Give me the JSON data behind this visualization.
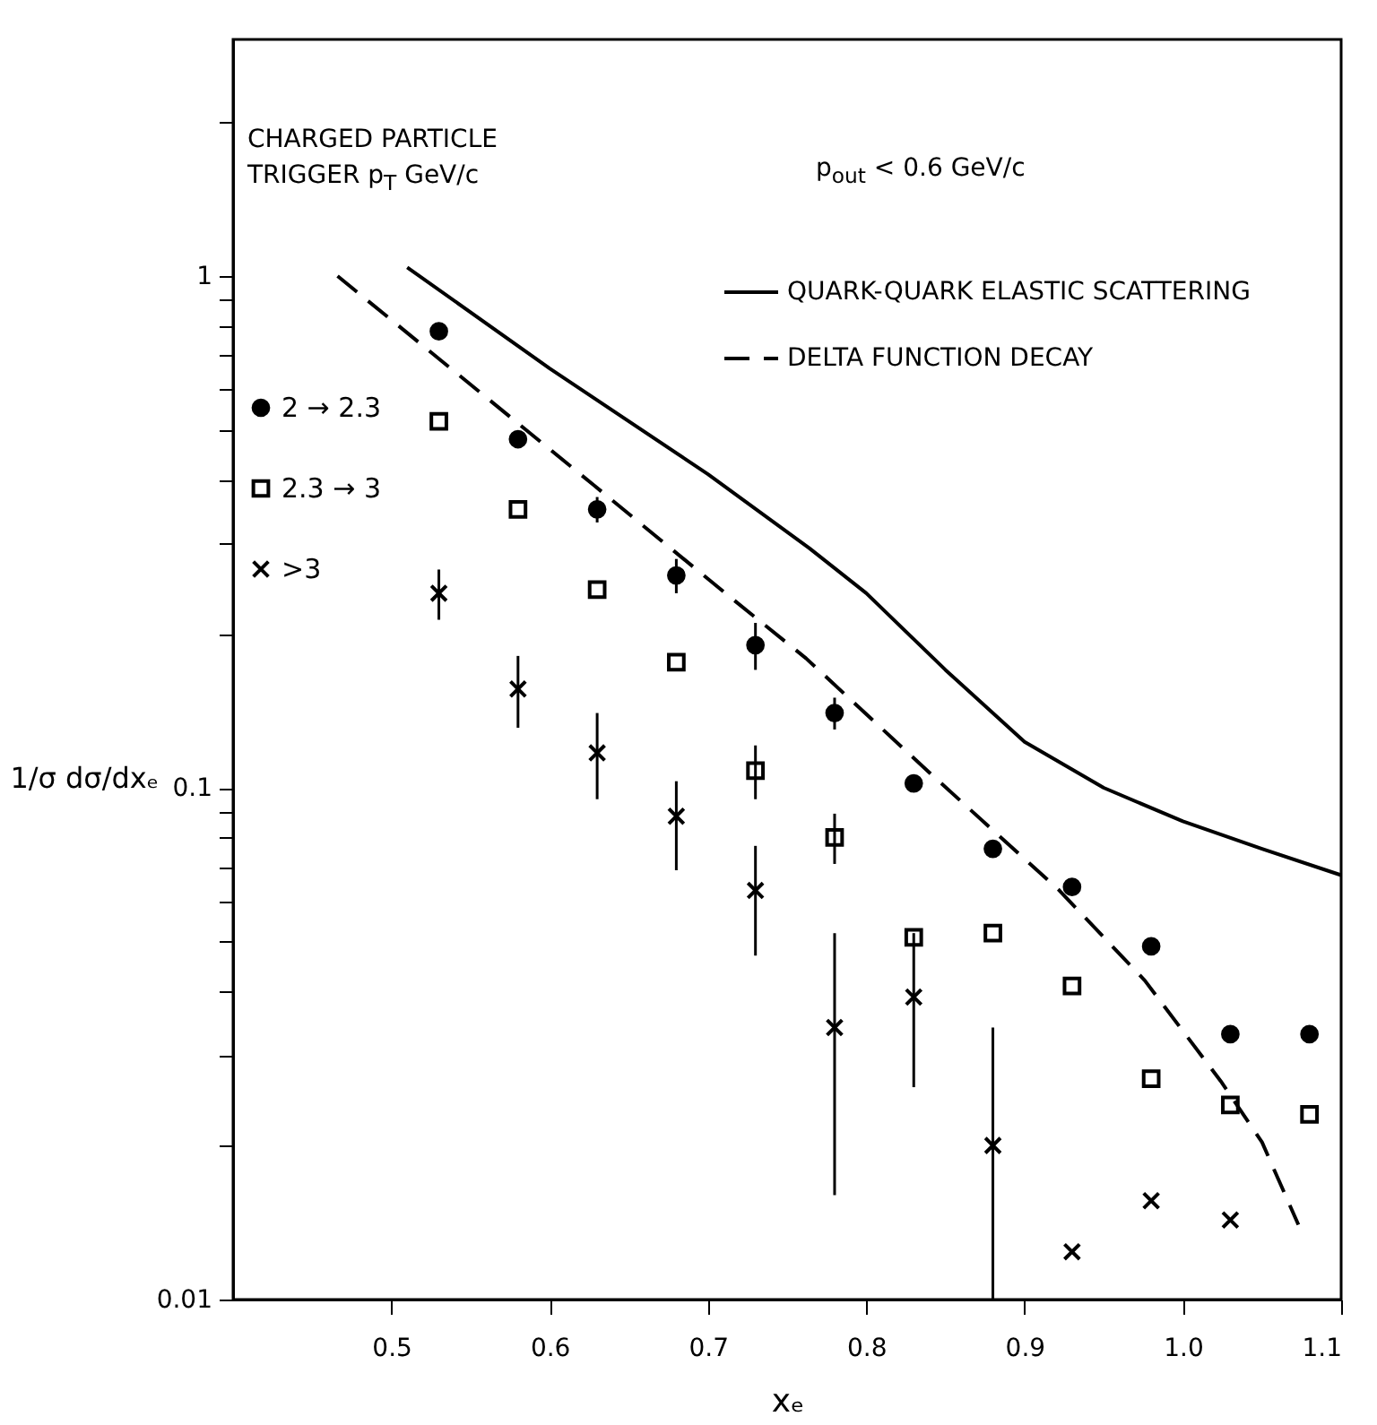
{
  "chart_data": {
    "type": "scatter",
    "xlabel": "xₑ",
    "ylabel": "1/σ dσ/dxₑ",
    "annotations": [
      "CHARGED PARTICLE TRIGGER p$_{T}$ GeV/c",
      "p$_{out}$ < 0.6 GeV/c"
    ],
    "x": [
      0.53,
      0.58,
      0.63,
      0.68,
      0.73,
      0.78,
      0.83,
      0.88,
      0.93,
      0.98,
      1.03,
      1.08
    ],
    "series": [
      {
        "name": "QUARK-QUARK ELASTIC SCATTERING",
        "type": "line",
        "line_style": "solid",
        "color": "#000000",
        "x": [
          0.51,
          0.6,
          0.7,
          0.764,
          0.8,
          0.85,
          0.9,
          0.95,
          1.0,
          1.05,
          1.1
        ],
        "values": [
          1.04,
          0.66,
          0.41,
          0.294,
          0.24,
          0.17,
          0.123,
          0.1,
          0.086,
          0.076,
          0.0675
        ]
      },
      {
        "name": "DELTA FUNCTION DECAY",
        "type": "line",
        "line_style": "dashed",
        "color": "#000000",
        "x": [
          0.466,
          0.628,
          0.711,
          0.762,
          0.84,
          0.922,
          0.976,
          1.024,
          1.05,
          1.073
        ],
        "values": [
          1.0,
          0.39,
          0.24,
          0.179,
          0.107,
          0.063,
          0.042,
          0.0267,
          0.0203,
          0.014
        ]
      },
      {
        "name": "2 → 2.3",
        "marker": "circle",
        "color": "#000000",
        "values": [
          0.78,
          0.48,
          0.35,
          0.26,
          0.19,
          0.14,
          0.102,
          0.076,
          0.064,
          0.049,
          0.033,
          0.033
        ],
        "errors": [
          null,
          null,
          [
            0.33,
            0.37
          ],
          [
            0.24,
            0.28
          ],
          [
            0.17,
            0.21
          ],
          [
            0.13,
            0.15
          ],
          null,
          null,
          null,
          null,
          null,
          null
        ]
      },
      {
        "name": "2.3 → 3",
        "marker": "square",
        "color": "#000000",
        "values": [
          0.52,
          0.35,
          0.244,
          0.176,
          0.108,
          0.08,
          0.051,
          0.052,
          0.041,
          0.027,
          0.024,
          0.023
        ],
        "errors": [
          null,
          null,
          null,
          null,
          [
            0.095,
            0.121
          ],
          [
            0.071,
            0.089
          ],
          null,
          null,
          null,
          null,
          null,
          null
        ]
      },
      {
        "name": ">3",
        "marker": "cross",
        "color": "#000000",
        "values": [
          0.24,
          0.156,
          0.117,
          0.088,
          0.063,
          0.034,
          0.039,
          0.02,
          0.0124,
          0.0156,
          0.0143,
          null
        ],
        "errors": [
          [
            0.213,
            0.267
          ],
          [
            0.131,
            0.181
          ],
          [
            0.095,
            0.14
          ],
          [
            0.069,
            0.103
          ],
          [
            0.047,
            0.077
          ],
          [
            0.016,
            0.052
          ],
          [
            0.026,
            0.052
          ],
          [
            0.01,
            0.034
          ],
          null,
          null,
          null,
          null
        ]
      }
    ],
    "xlim": [
      0.4,
      1.1
    ],
    "xticks": [
      0.5,
      0.6,
      0.7,
      0.8,
      0.9,
      {
        "value": 1,
        "label": "1.0"
      },
      1.1
    ],
    "ylim": [
      0.01,
      2.9
    ],
    "yticks": [
      0.01,
      {
        "value": 0.02,
        "label": null
      },
      {
        "value": 0.03,
        "label": null
      },
      {
        "value": 0.04,
        "label": null
      },
      {
        "value": 0.05,
        "label": null
      },
      {
        "value": 0.06,
        "label": null
      },
      {
        "value": 0.07,
        "label": null
      },
      {
        "value": 0.08,
        "label": null
      },
      {
        "value": 0.09,
        "label": null
      },
      0.1,
      {
        "value": 0.2,
        "label": null
      },
      {
        "value": 0.3,
        "label": null
      },
      {
        "value": 0.4,
        "label": null
      },
      {
        "value": 0.5,
        "label": null
      },
      {
        "value": 0.6,
        "label": null
      },
      {
        "value": 0.7,
        "label": null
      },
      {
        "value": 0.8,
        "label": null
      },
      {
        "value": 0.9,
        "label": null
      },
      1,
      {
        "value": 2,
        "label": null
      }
    ],
    "log": "y",
    "legend": "top right"
  }
}
